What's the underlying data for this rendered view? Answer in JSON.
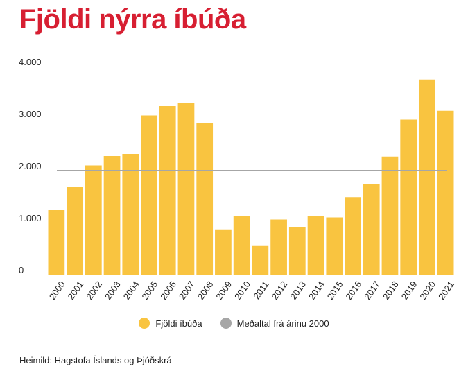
{
  "title": "Fjöldi nýrra íbúða",
  "source": "Heimild: Hagstofa Íslands og Þjóðskrá",
  "colors": {
    "title": "#d71f32",
    "bar": "#f9c440",
    "average_line": "#a6a6a6"
  },
  "chart_data": {
    "type": "bar",
    "categories": [
      "2000",
      "2001",
      "2002",
      "2003",
      "2004",
      "2005",
      "2006",
      "2007",
      "2008",
      "2009",
      "2010",
      "2011",
      "2012",
      "2013",
      "2014",
      "2015",
      "2016",
      "2017",
      "2018",
      "2019",
      "2020",
      "2021"
    ],
    "series": [
      {
        "name": "Fjöldi íbúða",
        "type": "bar",
        "values": [
          1240,
          1690,
          2100,
          2280,
          2320,
          3060,
          3240,
          3300,
          2920,
          870,
          1120,
          550,
          1060,
          910,
          1120,
          1100,
          1490,
          1740,
          2270,
          2980,
          3750,
          3150
        ]
      },
      {
        "name": "Meðaltal frá árinu 2000",
        "type": "line",
        "value": 2000
      }
    ],
    "yticks": [
      {
        "value": 0,
        "label": "0"
      },
      {
        "value": 1000,
        "label": "1.000"
      },
      {
        "value": 2000,
        "label": "2.000"
      },
      {
        "value": 3000,
        "label": "3.000"
      },
      {
        "value": 4000,
        "label": "4.000"
      }
    ],
    "ylim": [
      0,
      4000
    ],
    "xlabel": "",
    "ylabel": "",
    "grid": false,
    "legend_position": "bottom"
  }
}
